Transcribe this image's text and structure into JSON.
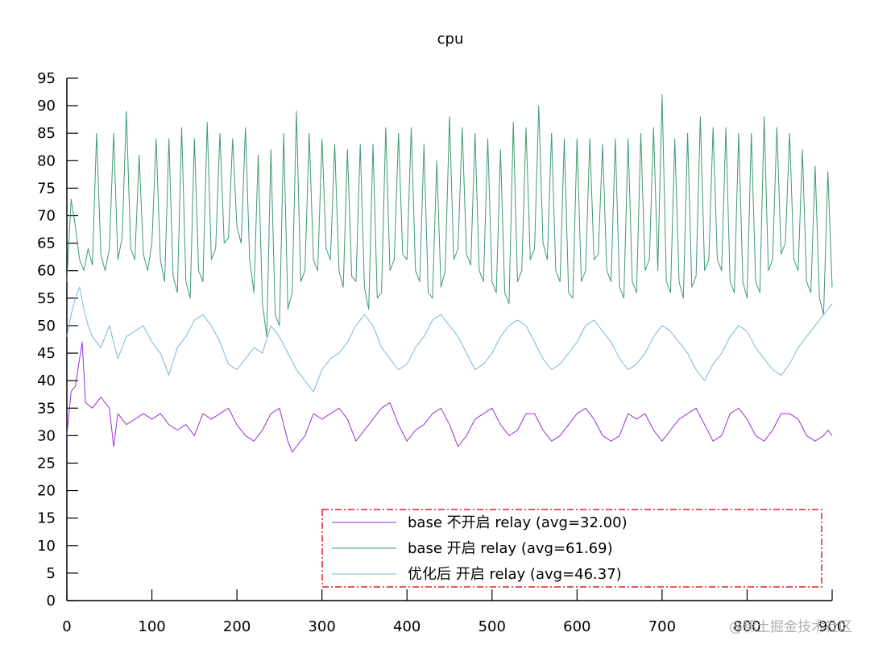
{
  "chart_data": {
    "type": "line",
    "title": "cpu",
    "xlabel": "",
    "ylabel": "",
    "xlim": [
      0,
      900
    ],
    "ylim": [
      0,
      95
    ],
    "x_ticks": [
      0,
      100,
      200,
      300,
      400,
      500,
      600,
      700,
      800,
      900
    ],
    "y_ticks": [
      0,
      5,
      10,
      15,
      20,
      25,
      30,
      35,
      40,
      45,
      50,
      55,
      60,
      65,
      70,
      75,
      80,
      85,
      90,
      95
    ],
    "grid": false,
    "legend_position": "bottom-right",
    "series": [
      {
        "name": "base 不开启 relay (avg=32.00)",
        "color": "#9a2fd1",
        "x": [
          0,
          5,
          10,
          15,
          18,
          22,
          30,
          40,
          50,
          55,
          60,
          70,
          80,
          90,
          100,
          110,
          120,
          130,
          140,
          150,
          160,
          170,
          180,
          190,
          200,
          210,
          220,
          230,
          240,
          250,
          260,
          265,
          270,
          280,
          290,
          300,
          310,
          320,
          330,
          340,
          350,
          360,
          370,
          380,
          390,
          400,
          410,
          420,
          430,
          440,
          450,
          460,
          470,
          480,
          490,
          500,
          510,
          520,
          530,
          540,
          550,
          560,
          570,
          580,
          590,
          600,
          610,
          620,
          630,
          640,
          650,
          660,
          670,
          680,
          690,
          700,
          710,
          720,
          730,
          740,
          750,
          760,
          770,
          780,
          790,
          800,
          810,
          820,
          830,
          840,
          850,
          860,
          870,
          880,
          890,
          895,
          900
        ],
        "values": [
          30,
          38,
          39,
          44,
          47,
          36,
          35,
          37,
          35,
          28,
          34,
          32,
          33,
          34,
          33,
          34,
          32,
          31,
          32,
          30,
          34,
          33,
          34,
          35,
          32,
          30,
          29,
          31,
          34,
          35,
          29,
          27,
          28,
          30,
          34,
          33,
          34,
          35,
          33,
          29,
          31,
          33,
          35,
          36,
          32,
          29,
          31,
          32,
          34,
          35,
          32,
          28,
          30,
          33,
          34,
          35,
          32,
          30,
          31,
          34,
          34,
          31,
          29,
          30,
          32,
          34,
          35,
          33,
          30,
          29,
          30,
          34,
          33,
          34,
          31,
          29,
          31,
          33,
          34,
          35,
          32,
          29,
          30,
          34,
          35,
          33,
          30,
          29,
          31,
          34,
          34,
          33,
          30,
          29,
          30,
          31,
          30
        ]
      },
      {
        "name": "base 开启 relay (avg=61.69)",
        "color": "#3f9a6e",
        "x": [
          0,
          5,
          10,
          15,
          20,
          25,
          30,
          35,
          40,
          45,
          50,
          55,
          60,
          65,
          70,
          75,
          80,
          85,
          90,
          95,
          100,
          105,
          110,
          115,
          120,
          125,
          130,
          135,
          140,
          145,
          150,
          155,
          160,
          165,
          170,
          175,
          180,
          185,
          190,
          195,
          200,
          205,
          210,
          215,
          220,
          225,
          230,
          235,
          240,
          245,
          250,
          255,
          260,
          265,
          270,
          275,
          280,
          285,
          290,
          295,
          300,
          305,
          310,
          315,
          320,
          325,
          330,
          335,
          340,
          345,
          350,
          355,
          360,
          365,
          370,
          375,
          380,
          385,
          390,
          395,
          400,
          405,
          410,
          415,
          420,
          425,
          430,
          435,
          440,
          445,
          450,
          455,
          460,
          465,
          470,
          475,
          480,
          485,
          490,
          495,
          500,
          505,
          510,
          515,
          520,
          525,
          530,
          535,
          540,
          545,
          550,
          555,
          560,
          565,
          570,
          575,
          580,
          585,
          590,
          595,
          600,
          605,
          610,
          615,
          620,
          625,
          630,
          635,
          640,
          645,
          650,
          655,
          660,
          665,
          670,
          675,
          680,
          685,
          690,
          695,
          700,
          705,
          710,
          715,
          720,
          725,
          730,
          735,
          740,
          745,
          750,
          755,
          760,
          765,
          770,
          775,
          780,
          785,
          790,
          795,
          800,
          805,
          810,
          815,
          820,
          825,
          830,
          835,
          840,
          845,
          850,
          855,
          860,
          865,
          870,
          875,
          880,
          885,
          890,
          895,
          900
        ],
        "values": [
          58,
          73,
          68,
          62,
          60,
          64,
          61,
          85,
          63,
          60,
          64,
          85,
          62,
          66,
          89,
          64,
          62,
          81,
          63,
          60,
          65,
          84,
          62,
          58,
          84,
          59,
          56,
          86,
          58,
          55,
          84,
          60,
          58,
          87,
          62,
          64,
          85,
          65,
          66,
          84,
          68,
          65,
          86,
          62,
          56,
          81,
          54,
          48,
          82,
          52,
          50,
          85,
          53,
          56,
          89,
          58,
          60,
          85,
          62,
          60,
          84,
          64,
          62,
          83,
          60,
          57,
          82,
          59,
          58,
          83,
          57,
          53,
          83,
          55,
          56,
          86,
          60,
          62,
          85,
          63,
          62,
          86,
          60,
          58,
          83,
          56,
          55,
          80,
          57,
          60,
          88,
          62,
          64,
          86,
          63,
          61,
          85,
          60,
          58,
          84,
          58,
          56,
          82,
          56,
          54,
          87,
          58,
          60,
          86,
          62,
          64,
          90,
          65,
          62,
          85,
          60,
          58,
          84,
          56,
          55,
          84,
          58,
          60,
          84,
          62,
          63,
          83,
          60,
          58,
          84,
          57,
          55,
          84,
          58,
          56,
          85,
          60,
          62,
          86,
          60,
          92,
          58,
          56,
          84,
          58,
          55,
          85,
          57,
          59,
          88,
          60,
          62,
          86,
          62,
          60,
          86,
          58,
          56,
          85,
          58,
          55,
          85,
          58,
          56,
          88,
          60,
          62,
          86,
          63,
          65,
          85,
          62,
          60,
          82,
          58,
          56,
          79,
          55,
          52,
          78,
          57
        ]
      },
      {
        "name": "优化后 开启 relay (avg=46.37)",
        "color": "#7ab6e2",
        "x": [
          0,
          5,
          10,
          15,
          20,
          25,
          30,
          40,
          50,
          60,
          70,
          80,
          90,
          100,
          110,
          120,
          130,
          140,
          150,
          160,
          170,
          180,
          190,
          200,
          210,
          220,
          230,
          240,
          250,
          260,
          270,
          280,
          290,
          300,
          310,
          320,
          330,
          340,
          350,
          360,
          370,
          380,
          390,
          400,
          410,
          420,
          430,
          440,
          450,
          460,
          470,
          480,
          490,
          500,
          510,
          520,
          530,
          540,
          550,
          560,
          570,
          580,
          590,
          600,
          610,
          620,
          630,
          640,
          650,
          660,
          670,
          680,
          690,
          700,
          710,
          720,
          730,
          740,
          750,
          760,
          770,
          780,
          790,
          800,
          810,
          820,
          830,
          840,
          850,
          860,
          870,
          880,
          890,
          900
        ],
        "values": [
          48,
          52,
          55,
          57,
          53,
          50,
          48,
          46,
          50,
          44,
          48,
          49,
          50,
          47,
          45,
          41,
          46,
          48,
          51,
          52,
          50,
          47,
          43,
          42,
          44,
          46,
          45,
          50,
          48,
          45,
          42,
          40,
          38,
          42,
          44,
          45,
          47,
          50,
          52,
          50,
          46,
          44,
          42,
          43,
          46,
          48,
          51,
          52,
          50,
          48,
          45,
          42,
          43,
          45,
          48,
          50,
          51,
          50,
          47,
          44,
          42,
          43,
          45,
          47,
          50,
          51,
          49,
          47,
          44,
          42,
          43,
          45,
          48,
          50,
          49,
          47,
          45,
          42,
          40,
          43,
          45,
          48,
          50,
          49,
          46,
          44,
          42,
          41,
          43,
          46,
          48,
          50,
          52,
          54
        ]
      }
    ]
  },
  "watermark": "@稀土掘金技术社区"
}
